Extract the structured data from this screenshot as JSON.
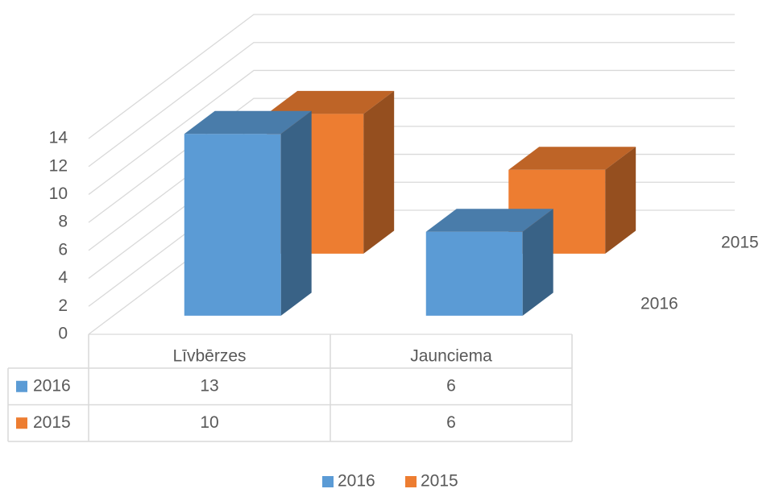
{
  "chart_data": {
    "type": "bar3d",
    "categories": [
      "Līvbērzes",
      "Jaunciema"
    ],
    "series": [
      {
        "name": "2016",
        "color": "#5b9bd5",
        "values": [
          13,
          6
        ]
      },
      {
        "name": "2015",
        "color": "#ed7d31",
        "values": [
          10,
          6
        ]
      }
    ],
    "ylim": [
      0,
      14
    ],
    "yticks": [
      0,
      2,
      4,
      6,
      8,
      10,
      12,
      14
    ],
    "grid": true,
    "data_table": true,
    "legend": "bottom"
  }
}
